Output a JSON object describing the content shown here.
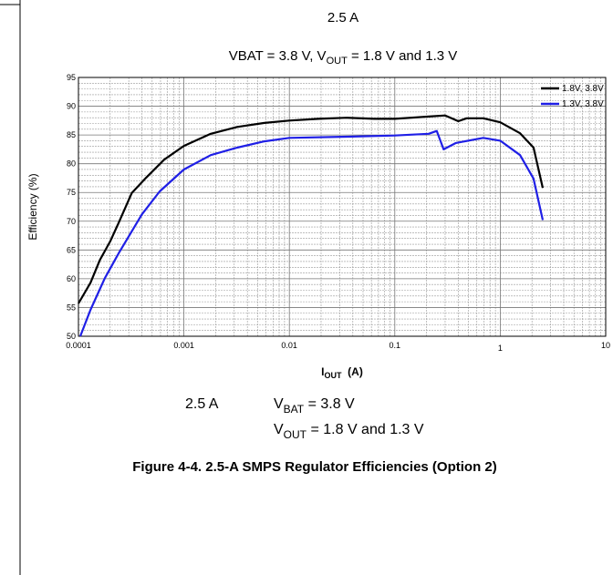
{
  "chart_data": {
    "type": "line",
    "title": "2.5 A",
    "subtitle": [
      "VBAT = 3.8 V, V",
      "OUT",
      " = 1.8 V and 1.3 V"
    ],
    "y_label": "Efficiency (%)",
    "x_label": [
      "I",
      "OUT",
      "  (A)"
    ],
    "x_scale": "log",
    "xlim": [
      0.0001,
      10
    ],
    "xticks": [
      0.0001,
      0.001,
      0.01,
      0.1,
      1,
      10
    ],
    "ylim": [
      50,
      95
    ],
    "yticks": [
      50,
      55,
      60,
      65,
      70,
      75,
      80,
      85,
      90,
      95
    ],
    "grid": true,
    "legend": "upper right",
    "series": [
      {
        "name": "1.8V, 3.8V",
        "color": "#000000",
        "x": [
          0.0001,
          0.00013,
          0.00016,
          0.0002,
          0.00024,
          0.00032,
          0.00044,
          0.00065,
          0.001,
          0.0018,
          0.0032,
          0.0058,
          0.01,
          0.019,
          0.035,
          0.064,
          0.1,
          0.21,
          0.3,
          0.4,
          0.48,
          0.69,
          1,
          1.54,
          2.07,
          2.53
        ],
        "values": [
          55.7,
          59.3,
          63.3,
          66.5,
          69.7,
          74.9,
          77.6,
          80.7,
          83.1,
          85.2,
          86.4,
          87.1,
          87.5,
          87.8,
          88,
          87.8,
          87.8,
          88.2,
          88.4,
          87.4,
          87.9,
          87.9,
          87.2,
          85.3,
          82.8,
          75.8
        ]
      },
      {
        "name": "1.3V, 3.8V",
        "color": "#1f1fe6",
        "x": [
          0.000104,
          0.00013,
          0.000178,
          0.00024,
          0.0004,
          0.00059,
          0.001,
          0.0018,
          0.0032,
          0.0058,
          0.01,
          0.035,
          0.1,
          0.21,
          0.25,
          0.29,
          0.38,
          0.69,
          1,
          1.54,
          2.07,
          2.53
        ],
        "values": [
          50,
          54.6,
          60.1,
          64.4,
          71.2,
          75.2,
          79,
          81.5,
          82.8,
          83.9,
          84.5,
          84.7,
          84.9,
          85.2,
          85.7,
          82.5,
          83.6,
          84.5,
          84,
          81.5,
          77.4,
          70.2
        ]
      }
    ]
  },
  "conditions": {
    "current": "2.5 A",
    "vbat": [
      "V",
      "BAT",
      " = 3.8 V"
    ],
    "vout": [
      "V",
      "OUT",
      " = 1.8 V and 1.3 V"
    ]
  },
  "caption": "Figure 4-4. 2.5-A SMPS Regulator Efficiencies (Option 2)"
}
